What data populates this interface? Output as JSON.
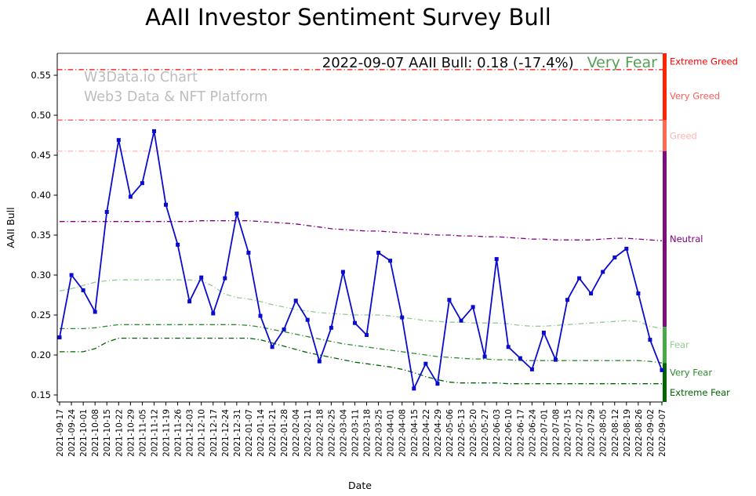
{
  "annotation": {
    "text": "2022-09-07 AAII Bull: 0.18 (-17.4%)",
    "status": "Very Fear",
    "status_color": "#55a055"
  },
  "watermark": {
    "line1": "W3Data.io Chart",
    "line2": "Web3 Data & NFT Platform"
  },
  "chart_data": {
    "type": "line",
    "title": "AAII Investor Sentiment Survey Bull",
    "xlabel": "Date",
    "ylabel": "AAII Bull",
    "ylim": [
      0.1412,
      0.5775
    ],
    "yticks": [
      0.15,
      0.2,
      0.25,
      0.3,
      0.35,
      0.4,
      0.45,
      0.5,
      0.55
    ],
    "grid": false,
    "categories": [
      "2021-09-17",
      "2021-09-24",
      "2021-10-01",
      "2021-10-08",
      "2021-10-15",
      "2021-10-22",
      "2021-10-29",
      "2021-11-05",
      "2021-11-12",
      "2021-11-19",
      "2021-11-26",
      "2021-12-03",
      "2021-12-10",
      "2021-12-17",
      "2021-12-24",
      "2021-12-31",
      "2022-01-07",
      "2022-01-14",
      "2022-01-21",
      "2022-01-28",
      "2022-02-04",
      "2022-02-11",
      "2022-02-18",
      "2022-02-25",
      "2022-03-04",
      "2022-03-11",
      "2022-03-18",
      "2022-03-25",
      "2022-04-01",
      "2022-04-08",
      "2022-04-15",
      "2022-04-22",
      "2022-04-29",
      "2022-05-06",
      "2022-05-13",
      "2022-05-20",
      "2022-05-27",
      "2022-06-03",
      "2022-06-10",
      "2022-06-17",
      "2022-06-24",
      "2022-07-01",
      "2022-07-08",
      "2022-07-15",
      "2022-07-22",
      "2022-07-29",
      "2022-08-05",
      "2022-08-12",
      "2022-08-19",
      "2022-08-26",
      "2022-09-02",
      "2022-09-07"
    ],
    "main_series": {
      "name": "AAII Bull",
      "color": "#0b0bcd",
      "values": [
        0.222,
        0.3,
        0.281,
        0.254,
        0.379,
        0.469,
        0.398,
        0.415,
        0.48,
        0.388,
        0.338,
        0.267,
        0.297,
        0.252,
        0.296,
        0.377,
        0.328,
        0.249,
        0.21,
        0.232,
        0.268,
        0.244,
        0.192,
        0.234,
        0.304,
        0.24,
        0.225,
        0.328,
        0.318,
        0.247,
        0.158,
        0.189,
        0.164,
        0.269,
        0.243,
        0.26,
        0.198,
        0.32,
        0.21,
        0.196,
        0.182,
        0.228,
        0.194,
        0.269,
        0.296,
        0.277,
        0.304,
        0.322,
        0.333,
        0.277,
        0.219,
        0.181
      ]
    },
    "thresholds": [
      {
        "name": "Extreme Greed",
        "color": "#ff0000",
        "const": 0.557
      },
      {
        "name": "Very Greed",
        "color": "#ff5a5a",
        "const": 0.494
      },
      {
        "name": "Greed",
        "color": "#ffb3b3",
        "const": 0.455
      },
      {
        "name": "Neutral",
        "color": "#800080",
        "values": [
          0.367,
          0.367,
          0.367,
          0.367,
          0.367,
          0.367,
          0.367,
          0.367,
          0.367,
          0.367,
          0.367,
          0.367,
          0.368,
          0.368,
          0.368,
          0.368,
          0.368,
          0.367,
          0.366,
          0.365,
          0.364,
          0.362,
          0.36,
          0.358,
          0.357,
          0.356,
          0.355,
          0.355,
          0.354,
          0.353,
          0.352,
          0.351,
          0.35,
          0.35,
          0.349,
          0.349,
          0.348,
          0.348,
          0.347,
          0.346,
          0.345,
          0.345,
          0.344,
          0.344,
          0.344,
          0.344,
          0.345,
          0.346,
          0.346,
          0.345,
          0.344,
          0.343
        ]
      },
      {
        "name": "Fear",
        "color": "#93cb93",
        "values": [
          0.28,
          0.283,
          0.287,
          0.291,
          0.293,
          0.294,
          0.294,
          0.294,
          0.294,
          0.294,
          0.294,
          0.294,
          0.293,
          0.286,
          0.276,
          0.272,
          0.27,
          0.267,
          0.263,
          0.26,
          0.257,
          0.255,
          0.253,
          0.252,
          0.251,
          0.25,
          0.25,
          0.25,
          0.249,
          0.247,
          0.245,
          0.243,
          0.242,
          0.241,
          0.241,
          0.24,
          0.24,
          0.24,
          0.239,
          0.237,
          0.236,
          0.236,
          0.237,
          0.238,
          0.239,
          0.24,
          0.241,
          0.242,
          0.243,
          0.242,
          0.236,
          0.233
        ]
      },
      {
        "name": "Very Fear",
        "color": "#2e8b2e",
        "values": [
          0.233,
          0.233,
          0.233,
          0.234,
          0.236,
          0.238,
          0.238,
          0.238,
          0.238,
          0.238,
          0.238,
          0.238,
          0.238,
          0.238,
          0.238,
          0.238,
          0.237,
          0.235,
          0.232,
          0.229,
          0.226,
          0.223,
          0.22,
          0.217,
          0.214,
          0.212,
          0.21,
          0.208,
          0.206,
          0.204,
          0.202,
          0.2,
          0.198,
          0.197,
          0.196,
          0.195,
          0.195,
          0.194,
          0.194,
          0.193,
          0.193,
          0.193,
          0.193,
          0.193,
          0.193,
          0.193,
          0.193,
          0.193,
          0.193,
          0.193,
          0.192,
          0.19
        ]
      },
      {
        "name": "Extreme Fear",
        "color": "#006400",
        "values": [
          0.204,
          0.204,
          0.204,
          0.208,
          0.216,
          0.221,
          0.221,
          0.221,
          0.221,
          0.221,
          0.221,
          0.221,
          0.221,
          0.221,
          0.221,
          0.221,
          0.221,
          0.219,
          0.215,
          0.211,
          0.207,
          0.203,
          0.2,
          0.197,
          0.194,
          0.191,
          0.189,
          0.187,
          0.185,
          0.182,
          0.178,
          0.173,
          0.169,
          0.166,
          0.165,
          0.165,
          0.165,
          0.165,
          0.164,
          0.164,
          0.164,
          0.164,
          0.164,
          0.164,
          0.164,
          0.164,
          0.164,
          0.164,
          0.164,
          0.164,
          0.164,
          0.164
        ]
      }
    ],
    "zone_labels": [
      {
        "label": "Extreme Greed",
        "color": "#ff0000",
        "value": 0.567
      },
      {
        "label": "Very Greed",
        "color": "#ff5a5a",
        "value": 0.524
      },
      {
        "label": "Greed",
        "color": "#ffb3b3",
        "value": 0.474
      },
      {
        "label": "Neutral",
        "color": "#800080",
        "value": 0.345
      },
      {
        "label": "Fear",
        "color": "#93cb93",
        "value": 0.213
      },
      {
        "label": "Very Fear",
        "color": "#2e8b2e",
        "value": 0.178
      },
      {
        "label": "Extreme Fear",
        "color": "#006400",
        "value": 0.153
      }
    ],
    "colorbar": [
      {
        "color": "#ff2400",
        "from": 0.5775,
        "to": 0.494
      },
      {
        "color": "#ff6a52",
        "from": 0.494,
        "to": 0.455
      },
      {
        "color": "#7c0e7c",
        "from": 0.455,
        "to": 0.235
      },
      {
        "color": "#49a849",
        "from": 0.235,
        "to": 0.19
      },
      {
        "color": "#006400",
        "from": 0.19,
        "to": 0.1412
      }
    ]
  }
}
